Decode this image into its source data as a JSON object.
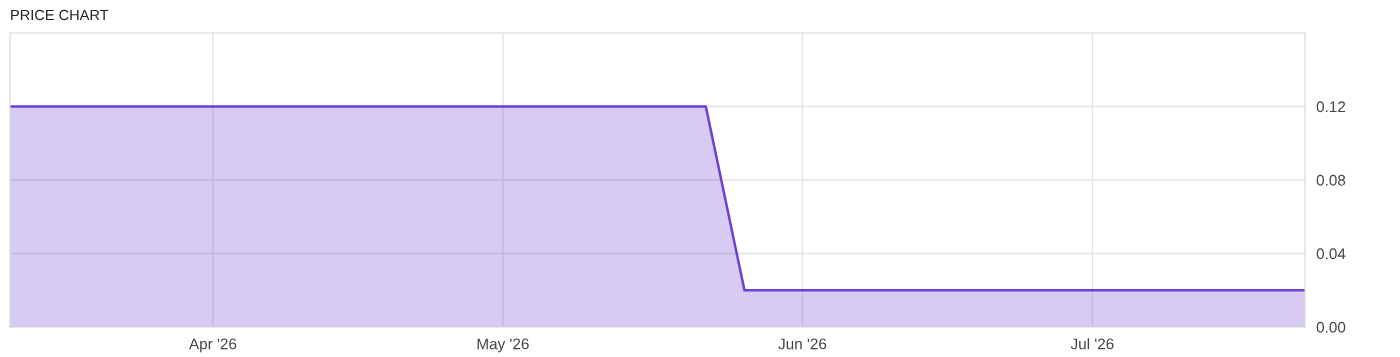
{
  "chart_data": {
    "type": "area",
    "title": "PRICE CHART",
    "x": [
      "2026-03-11",
      "2026-05-22",
      "2026-05-26",
      "2026-07-23"
    ],
    "series": [
      {
        "color": "#6c3fd1",
        "values": [
          0.12,
          0.12,
          0.02,
          0.02
        ]
      }
    ],
    "xlim": [
      "2026-03-11",
      "2026-07-23"
    ],
    "xticks": [
      {
        "value": "2026-04-01",
        "label": "Apr '26"
      },
      {
        "value": "2026-05-01",
        "label": "May '26"
      },
      {
        "value": "2026-06-01",
        "label": "Jun '26"
      },
      {
        "value": "2026-07-01",
        "label": "Jul '26"
      }
    ],
    "ylim": [
      0,
      0.16
    ],
    "yticks": [
      {
        "value": 0,
        "label": "0.00"
      },
      {
        "value": 0.04,
        "label": "0.04"
      },
      {
        "value": 0.08,
        "label": "0.08"
      },
      {
        "value": 0.12,
        "label": "0.12"
      }
    ],
    "grid": true,
    "legend": false
  }
}
